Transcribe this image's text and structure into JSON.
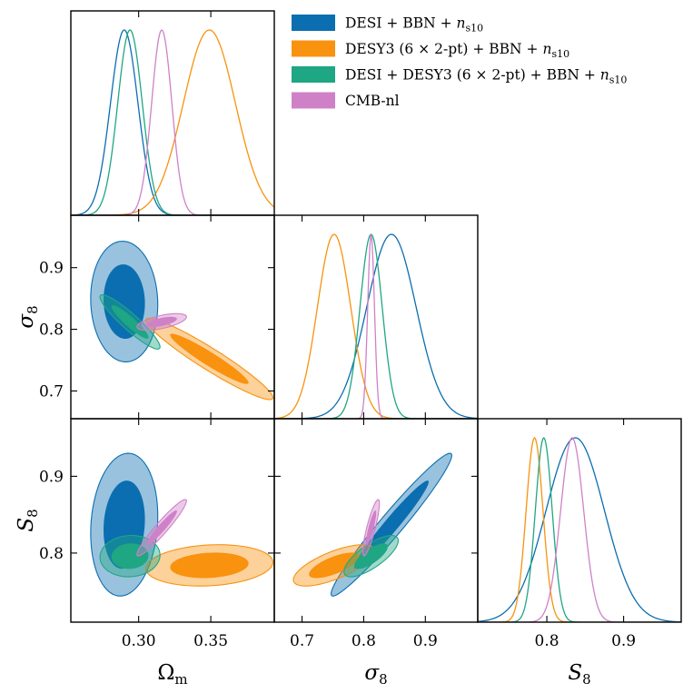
{
  "chart_data": {
    "type": "triangle-corner-plot",
    "parameters": [
      {
        "key": "Om",
        "label": "Ω",
        "sub": "m",
        "range": [
          0.253,
          0.394
        ],
        "ticks": [
          0.3,
          0.35
        ],
        "tick_labels": [
          "0.30",
          "0.35"
        ]
      },
      {
        "key": "sigma8",
        "label": "σ",
        "sub": "8",
        "range": [
          0.655,
          0.985
        ],
        "ticks": [
          0.7,
          0.8,
          0.9
        ],
        "tick_labels": [
          "0.7",
          "0.8",
          "0.9"
        ]
      },
      {
        "key": "S8",
        "label": "S",
        "sub": "8",
        "range": [
          0.71,
          0.975
        ],
        "ticks": [
          0.8,
          0.9
        ],
        "tick_labels": [
          "0.8",
          "0.9"
        ]
      }
    ],
    "series": [
      {
        "name": "DESI + BBN + n_s10",
        "legend_main": "DESI + BBN + ",
        "legend_math": "n",
        "legend_sub": "s10",
        "color": "#0b6eb0",
        "fill": "#0b6eb0",
        "mean": {
          "Om": 0.29,
          "sigma8": 0.845,
          "S8": 0.837
        },
        "sigma": {
          "Om": 0.0095,
          "sigma8": 0.04,
          "S8": 0.038
        },
        "corr": {
          "Om_sigma8": -0.05,
          "Om_S8": 0.12,
          "sigma8_S8": 0.97
        }
      },
      {
        "name": "DESY3 (6×2-pt) + BBN + n_s10",
        "legend_main": "DESY3 (6 × 2-pt) + BBN + ",
        "legend_math": "n",
        "legend_sub": "s10",
        "color": "#f8920f",
        "fill": "#f8920f",
        "mean": {
          "Om": 0.349,
          "sigma8": 0.752,
          "S8": 0.784
        },
        "sigma": {
          "Om": 0.018,
          "sigma8": 0.027,
          "S8": 0.011
        },
        "corr": {
          "Om_sigma8": -0.95,
          "Om_S8": 0.15,
          "sigma8_S8": 0.7
        }
      },
      {
        "name": "DESI + DESY3 (6×2-pt) + BBN + n_s10",
        "legend_main": "DESI + DESY3 (6 × 2-pt) + BBN + ",
        "legend_math": "n",
        "legend_sub": "s10",
        "color": "#1fa683",
        "fill": "#1fa683",
        "mean": {
          "Om": 0.294,
          "sigma8": 0.812,
          "S8": 0.796
        },
        "sigma": {
          "Om": 0.0085,
          "sigma8": 0.018,
          "S8": 0.011
        },
        "corr": {
          "Om_sigma8": -0.92,
          "Om_S8": 0.05,
          "sigma8_S8": 0.75
        }
      },
      {
        "name": "CMB-nl",
        "legend_main": "CMB-nl",
        "legend_math": "",
        "legend_sub": "",
        "color": "#cf81c8",
        "fill": "#cf81c8",
        "mean": {
          "Om": 0.316,
          "sigma8": 0.812,
          "S8": 0.833
        },
        "sigma": {
          "Om": 0.007,
          "sigma8": 0.0055,
          "S8": 0.015
        },
        "corr": {
          "Om_sigma8": 0.6,
          "Om_S8": 0.95,
          "sigma8_S8": 0.85
        }
      }
    ],
    "contour_levels": [
      "68%",
      "95%"
    ],
    "legend_position": "top-right"
  }
}
